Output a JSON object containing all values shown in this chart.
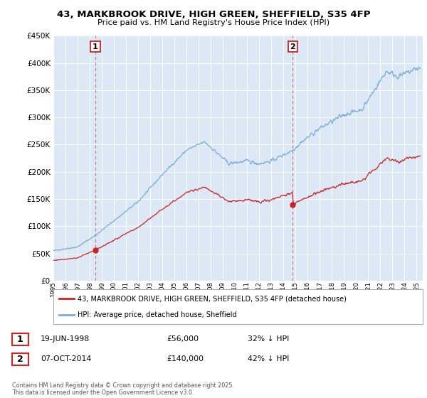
{
  "title": "43, MARKBROOK DRIVE, HIGH GREEN, SHEFFIELD, S35 4FP",
  "subtitle": "Price paid vs. HM Land Registry's House Price Index (HPI)",
  "hpi_color": "#7aaadd",
  "price_color": "#cc2222",
  "purchase1": {
    "date_year": 1998.46,
    "price": 56000
  },
  "purchase2": {
    "date_year": 2014.77,
    "price": 140000
  },
  "legend_entries": [
    "43, MARKBROOK DRIVE, HIGH GREEN, SHEFFIELD, S35 4FP (detached house)",
    "HPI: Average price, detached house, Sheffield"
  ],
  "table_rows": [
    [
      "1",
      "19-JUN-1998",
      "£56,000",
      "32% ↓ HPI"
    ],
    [
      "2",
      "07-OCT-2014",
      "£140,000",
      "42% ↓ HPI"
    ]
  ],
  "footnote": "Contains HM Land Registry data © Crown copyright and database right 2025.\nThis data is licensed under the Open Government Licence v3.0.",
  "bg_color": "#dce8f5"
}
